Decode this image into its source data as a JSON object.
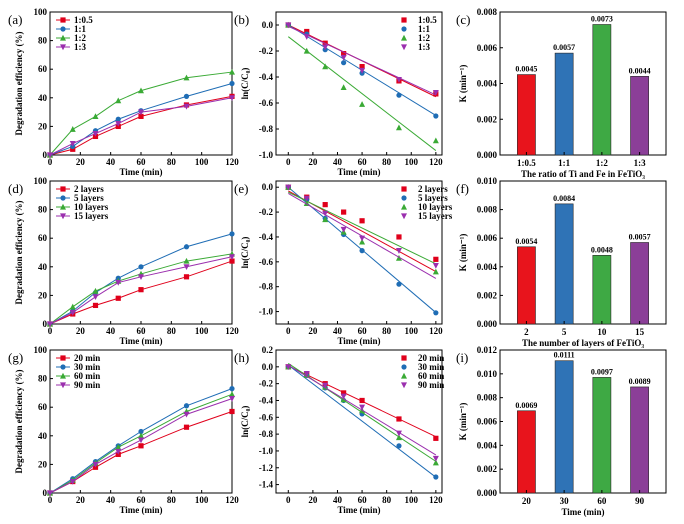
{
  "chart_data": [
    {
      "type": "line",
      "panel_label": "(a)",
      "xlabel": "Time (min)",
      "ylabel": "Degradation efficiency (%)",
      "xlim": [
        0,
        120
      ],
      "ylim": [
        0,
        100
      ],
      "xticks": [
        0,
        20,
        40,
        60,
        80,
        100,
        120
      ],
      "yticks": [
        0,
        20,
        40,
        60,
        80,
        100
      ],
      "legend": "top-left",
      "series": [
        {
          "name": "1:0.5",
          "color": "#e0001b",
          "marker": "square",
          "x": [
            0,
            15,
            30,
            45,
            60,
            90,
            120
          ],
          "y": [
            0,
            4,
            13,
            20,
            27,
            35,
            41
          ]
        },
        {
          "name": "1:1",
          "color": "#1f6db5",
          "marker": "circle",
          "x": [
            0,
            15,
            30,
            45,
            60,
            90,
            120
          ],
          "y": [
            0,
            6,
            17,
            25,
            31,
            41,
            50
          ]
        },
        {
          "name": "1:2",
          "color": "#3aaa35",
          "marker": "triangle",
          "x": [
            0,
            15,
            30,
            45,
            60,
            90,
            120
          ],
          "y": [
            0,
            18,
            27,
            38,
            45,
            54,
            58
          ]
        },
        {
          "name": "1:3",
          "color": "#9b2fae",
          "marker": "triangle-down",
          "x": [
            0,
            15,
            30,
            45,
            60,
            90,
            120
          ],
          "y": [
            0,
            8,
            15,
            22,
            30,
            34,
            40
          ]
        }
      ]
    },
    {
      "type": "scatter",
      "panel_label": "(b)",
      "xlabel": "Time (min)",
      "ylabel": "ln(C/C₀)",
      "xlim": [
        -10,
        125
      ],
      "ylim": [
        -1.0,
        0.1
      ],
      "xticks": [
        0,
        20,
        40,
        60,
        80,
        100,
        120
      ],
      "yticks": [
        0.0,
        -0.2,
        -0.4,
        -0.6,
        -0.8,
        -1.0
      ],
      "ytick_labels": [
        "0.0",
        "-0.2",
        "-0.4",
        "-0.6",
        "-0.8",
        "-1.0"
      ],
      "legend": "top-right",
      "series": [
        {
          "name": "1:0.5",
          "color": "#e0001b",
          "marker": "square",
          "x": [
            0,
            15,
            30,
            45,
            60,
            90,
            120
          ],
          "y": [
            0,
            -0.05,
            -0.14,
            -0.22,
            -0.32,
            -0.43,
            -0.53
          ],
          "fit": [
            0.0,
            -0.0046
          ]
        },
        {
          "name": "1:1",
          "color": "#1f6db5",
          "marker": "circle",
          "x": [
            0,
            15,
            30,
            45,
            60,
            90,
            120
          ],
          "y": [
            0,
            -0.07,
            -0.19,
            -0.29,
            -0.37,
            -0.54,
            -0.7
          ],
          "fit": [
            0.0,
            -0.0058
          ]
        },
        {
          "name": "1:2",
          "color": "#3aaa35",
          "marker": "triangle",
          "x": [
            0,
            15,
            30,
            45,
            60,
            90,
            120
          ],
          "y": [
            0,
            -0.2,
            -0.32,
            -0.48,
            -0.61,
            -0.79,
            -0.89
          ],
          "fit": [
            -0.09,
            -0.0073
          ]
        },
        {
          "name": "1:3",
          "color": "#9b2fae",
          "marker": "triangle-down",
          "x": [
            0,
            15,
            30,
            45,
            60,
            90,
            120
          ],
          "y": [
            0,
            -0.09,
            -0.17,
            -0.25,
            -0.35,
            -0.42,
            -0.52
          ],
          "fit": [
            -0.01,
            -0.0044
          ]
        }
      ]
    },
    {
      "type": "bar",
      "panel_label": "(c)",
      "xlabel": "The ratio of Ti and Fe in FeTiO₃",
      "ylabel": "K (min⁻¹)",
      "ylim": [
        0,
        0.008
      ],
      "yticks": [
        0,
        0.002,
        0.004,
        0.006,
        0.008
      ],
      "ytick_labels": [
        "0.000",
        "0.002",
        "0.004",
        "0.006",
        "0.008"
      ],
      "categories": [
        "1:0.5",
        "1:1",
        "1:2",
        "1:3"
      ],
      "values": [
        0.0045,
        0.0057,
        0.0073,
        0.0044
      ],
      "value_labels": [
        "0.0045",
        "0.0057",
        "0.0073",
        "0.0044"
      ],
      "colors": [
        "#e8141c",
        "#2f73b6",
        "#3ea944",
        "#8b3f98"
      ]
    },
    {
      "type": "line",
      "panel_label": "(d)",
      "xlabel": "Time (min)",
      "ylabel": "Degradation efficiency (%)",
      "xlim": [
        0,
        120
      ],
      "ylim": [
        0,
        100
      ],
      "xticks": [
        0,
        20,
        40,
        60,
        80,
        100,
        120
      ],
      "yticks": [
        0,
        20,
        40,
        60,
        80,
        100
      ],
      "legend": "top-left",
      "series": [
        {
          "name": "2   layers",
          "color": "#e0001b",
          "marker": "square",
          "x": [
            0,
            15,
            30,
            45,
            60,
            90,
            120
          ],
          "y": [
            0,
            7,
            13,
            18,
            24,
            33,
            44
          ]
        },
        {
          "name": "5   layers",
          "color": "#1f6db5",
          "marker": "circle",
          "x": [
            0,
            15,
            30,
            45,
            60,
            90,
            120
          ],
          "y": [
            0,
            9,
            22,
            32,
            40,
            54,
            63
          ]
        },
        {
          "name": "10 layers",
          "color": "#3aaa35",
          "marker": "triangle",
          "x": [
            0,
            15,
            30,
            45,
            60,
            90,
            120
          ],
          "y": [
            0,
            12,
            23,
            30,
            35,
            44,
            49
          ]
        },
        {
          "name": "15 layers",
          "color": "#9b2fae",
          "marker": "triangle-down",
          "x": [
            0,
            15,
            30,
            45,
            60,
            90,
            120
          ],
          "y": [
            0,
            8,
            19,
            29,
            33,
            40,
            47
          ]
        }
      ]
    },
    {
      "type": "scatter",
      "panel_label": "(e)",
      "xlabel": "Time (min)",
      "ylabel": "ln(C/C₀)",
      "xlim": [
        -10,
        125
      ],
      "ylim": [
        -1.1,
        0.05
      ],
      "xticks": [
        0,
        20,
        40,
        60,
        80,
        100,
        120
      ],
      "yticks": [
        0.0,
        -0.2,
        -0.4,
        -0.6,
        -0.8,
        -1.0
      ],
      "ytick_labels": [
        "0.0",
        "-0.2",
        "-0.4",
        "-0.6",
        "-0.8",
        "-1.0"
      ],
      "legend": "top-right",
      "series": [
        {
          "name": "2   layers",
          "color": "#e0001b",
          "marker": "square",
          "x": [
            0,
            15,
            30,
            45,
            60,
            90,
            120
          ],
          "y": [
            0,
            -0.08,
            -0.14,
            -0.2,
            -0.27,
            -0.4,
            -0.58
          ],
          "fit": [
            -0.03,
            -0.0054
          ]
        },
        {
          "name": "5   layers",
          "color": "#1f6db5",
          "marker": "circle",
          "x": [
            0,
            15,
            30,
            45,
            60,
            90,
            120
          ],
          "y": [
            0,
            -0.1,
            -0.25,
            -0.38,
            -0.51,
            -0.78,
            -1.01
          ],
          "fit": [
            0.0,
            -0.0084
          ]
        },
        {
          "name": "10 layers",
          "color": "#3aaa35",
          "marker": "triangle",
          "x": [
            0,
            15,
            30,
            45,
            60,
            90,
            120
          ],
          "y": [
            0,
            -0.13,
            -0.26,
            -0.36,
            -0.44,
            -0.57,
            -0.68
          ],
          "fit": [
            -0.04,
            -0.0048
          ]
        },
        {
          "name": "15 layers",
          "color": "#9b2fae",
          "marker": "triangle-down",
          "x": [
            0,
            15,
            30,
            45,
            60,
            90,
            120
          ],
          "y": [
            0,
            -0.09,
            -0.21,
            -0.34,
            -0.41,
            -0.51,
            -0.63
          ],
          "fit": [
            -0.05,
            -0.0057
          ]
        }
      ]
    },
    {
      "type": "bar",
      "panel_label": "(f)",
      "xlabel": "The number of layers of FeTiO₃",
      "ylabel": "K (min⁻¹)",
      "ylim": [
        0,
        0.01
      ],
      "yticks": [
        0,
        0.002,
        0.004,
        0.006,
        0.008,
        0.01
      ],
      "ytick_labels": [
        "0.000",
        "0.002",
        "0.004",
        "0.006",
        "0.008",
        "0.010"
      ],
      "categories": [
        "2",
        "5",
        "10",
        "15"
      ],
      "values": [
        0.0054,
        0.0084,
        0.0048,
        0.0057
      ],
      "value_labels": [
        "0.0054",
        "0.0084",
        "0.0048",
        "0.0057"
      ],
      "colors": [
        "#e8141c",
        "#2f73b6",
        "#3ea944",
        "#8b3f98"
      ]
    },
    {
      "type": "line",
      "panel_label": "(g)",
      "xlabel": "Time (min)",
      "ylabel": "Degradation efficiency (%)",
      "xlim": [
        0,
        120
      ],
      "ylim": [
        0,
        100
      ],
      "xticks": [
        0,
        20,
        40,
        60,
        80,
        100,
        120
      ],
      "yticks": [
        0,
        20,
        40,
        60,
        80,
        100
      ],
      "legend": "top-left",
      "series": [
        {
          "name": "20 min",
          "color": "#e0001b",
          "marker": "square",
          "x": [
            0,
            15,
            30,
            45,
            60,
            90,
            120
          ],
          "y": [
            0,
            8,
            18,
            27,
            33,
            46,
            57
          ]
        },
        {
          "name": "30 min",
          "color": "#1f6db5",
          "marker": "circle",
          "x": [
            0,
            15,
            30,
            45,
            60,
            90,
            120
          ],
          "y": [
            0,
            10,
            22,
            33,
            43,
            61,
            73
          ]
        },
        {
          "name": "60 min",
          "color": "#3aaa35",
          "marker": "triangle",
          "x": [
            0,
            15,
            30,
            45,
            60,
            90,
            120
          ],
          "y": [
            0,
            9,
            21,
            32,
            40,
            57,
            69
          ]
        },
        {
          "name": "90 min",
          "color": "#9b2fae",
          "marker": "triangle-down",
          "x": [
            0,
            15,
            30,
            45,
            60,
            90,
            120
          ],
          "y": [
            0,
            8,
            20,
            29,
            37,
            55,
            66
          ]
        }
      ]
    },
    {
      "type": "scatter",
      "panel_label": "(h)",
      "xlabel": "Time (min)",
      "ylabel": "ln(C/C₀)",
      "xlim": [
        -10,
        125
      ],
      "ylim": [
        -1.5,
        0.2
      ],
      "xticks": [
        0,
        20,
        40,
        60,
        80,
        100,
        120
      ],
      "yticks": [
        0.2,
        0.0,
        -0.2,
        -0.4,
        -0.6,
        -0.8,
        -1.0,
        -1.2,
        -1.4
      ],
      "ytick_labels": [
        "0.2",
        "0.0",
        "-0.2",
        "-0.4",
        "-0.6",
        "-0.8",
        "-1.0",
        "-1.2",
        "-1.4"
      ],
      "legend": "top-right",
      "series": [
        {
          "name": "20 min",
          "color": "#e0001b",
          "marker": "square",
          "x": [
            0,
            15,
            30,
            45,
            60,
            90,
            120
          ],
          "y": [
            0,
            -0.09,
            -0.2,
            -0.31,
            -0.4,
            -0.62,
            -0.85
          ],
          "fit": [
            0.01,
            -0.007
          ]
        },
        {
          "name": "30 min",
          "color": "#1f6db5",
          "marker": "circle",
          "x": [
            0,
            15,
            30,
            45,
            60,
            90,
            120
          ],
          "y": [
            0,
            -0.1,
            -0.25,
            -0.4,
            -0.56,
            -0.94,
            -1.31
          ],
          "fit": [
            0.02,
            -0.0111
          ]
        },
        {
          "name": "60 min",
          "color": "#3aaa35",
          "marker": "triangle",
          "x": [
            0,
            15,
            30,
            45,
            60,
            90,
            120
          ],
          "y": [
            0,
            -0.1,
            -0.24,
            -0.39,
            -0.52,
            -0.84,
            -1.14
          ],
          "fit": [
            0.04,
            -0.0097
          ]
        },
        {
          "name": "90 min",
          "color": "#9b2fae",
          "marker": "triangle-down",
          "x": [
            0,
            15,
            30,
            45,
            60,
            90,
            120
          ],
          "y": [
            0,
            -0.08,
            -0.22,
            -0.35,
            -0.48,
            -0.79,
            -1.09
          ],
          "fit": [
            0.02,
            -0.0089
          ]
        }
      ]
    },
    {
      "type": "bar",
      "panel_label": "(i)",
      "xlabel": "Time (min)",
      "ylabel": "K (min⁻¹)",
      "ylim": [
        0,
        0.012
      ],
      "yticks": [
        0,
        0.002,
        0.004,
        0.006,
        0.008,
        0.01,
        0.012
      ],
      "ytick_labels": [
        "0.000",
        "0.002",
        "0.004",
        "0.006",
        "0.008",
        "0.010",
        "0.012"
      ],
      "categories": [
        "20",
        "30",
        "60",
        "90"
      ],
      "values": [
        0.0069,
        0.0111,
        0.0097,
        0.0089
      ],
      "value_labels": [
        "0.0069",
        "0.0111",
        "0.0097",
        "0.0089"
      ],
      "colors": [
        "#e8141c",
        "#2f73b6",
        "#3ea944",
        "#8b3f98"
      ]
    }
  ]
}
